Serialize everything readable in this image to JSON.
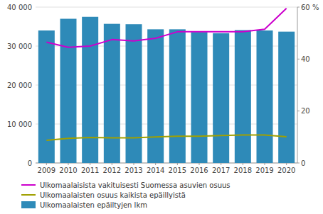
{
  "chart_data": {
    "type": "bar",
    "categories": [
      "2009",
      "2010",
      "2011",
      "2012",
      "2013",
      "2014",
      "2015",
      "2016",
      "2017",
      "2018",
      "2019",
      "2020"
    ],
    "series": [
      {
        "name": "Ulkomaalaisista vakituisesti Suomessa asuvien osuus",
        "type": "line",
        "axis": "y2",
        "color": "#cc00cc",
        "values": [
          46.5,
          44.5,
          45.0,
          47.5,
          47.0,
          48.0,
          50.5,
          50.5,
          50.5,
          50.5,
          51.5,
          59.5
        ]
      },
      {
        "name": "Ulkomaalaisten osuus kaikista epäillyistä",
        "type": "line",
        "axis": "y2",
        "color": "#a0a000",
        "values": [
          8.7,
          9.5,
          9.8,
          9.7,
          9.7,
          10.0,
          10.3,
          10.3,
          10.6,
          10.8,
          10.8,
          10.1
        ]
      },
      {
        "name": "Ulkomaalaisten epäiltyjen lkm",
        "type": "bar",
        "color": "#2e8ab8",
        "values": [
          34000,
          37000,
          37500,
          35700,
          35600,
          34300,
          34300,
          33600,
          33300,
          34100,
          34000,
          33700
        ]
      }
    ],
    "ylim": [
      0,
      40000
    ],
    "yticks": [
      0,
      {
        "value": 10000,
        "label": "10 000"
      },
      {
        "value": 20000,
        "label": "20 000"
      },
      {
        "value": 30000,
        "label": "30 000"
      },
      {
        "value": 40000,
        "label": "40 000"
      }
    ],
    "y2lim": [
      0,
      60
    ],
    "y2ticks": [
      0,
      20,
      40,
      {
        "value": 60,
        "label": "60 %"
      }
    ],
    "grid": true,
    "legend": "bottom"
  }
}
